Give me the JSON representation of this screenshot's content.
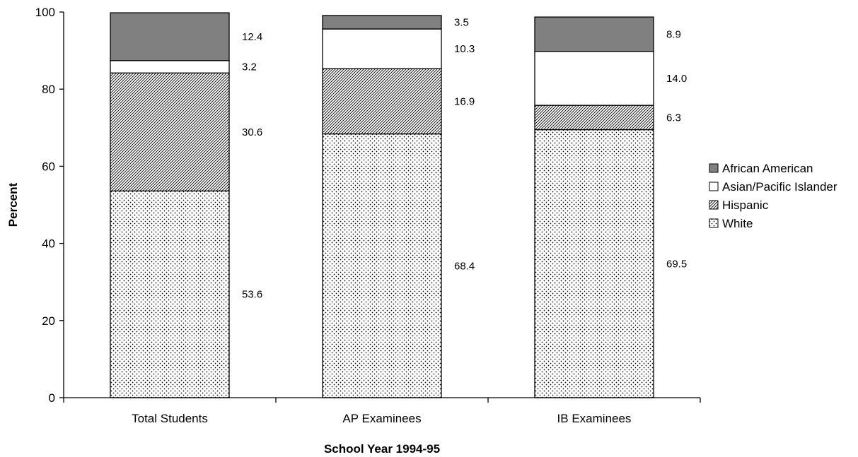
{
  "chart_data": {
    "type": "bar",
    "stacked": true,
    "categories": [
      "Total Students",
      "AP Examinees",
      "IB Examinees"
    ],
    "series": [
      {
        "name": "White",
        "values": [
          53.6,
          68.4,
          69.5
        ],
        "labels": [
          "53.6",
          "68.4",
          "69.5"
        ],
        "pattern": "dotted"
      },
      {
        "name": "Hispanic",
        "values": [
          30.6,
          16.9,
          6.3
        ],
        "labels": [
          "30.6",
          "16.9",
          "6.3"
        ],
        "pattern": "diagonal-hatch"
      },
      {
        "name": "Asian/Pacific Islander",
        "values": [
          3.2,
          10.3,
          14.0
        ],
        "labels": [
          "3.2",
          "10.3",
          "14.0"
        ],
        "color": "#ffffff"
      },
      {
        "name": "African American",
        "values": [
          12.4,
          3.5,
          8.9
        ],
        "labels": [
          "12.4",
          "3.5",
          "8.9"
        ],
        "color": "#808080"
      }
    ],
    "legend_order": [
      "African American",
      "Asian/Pacific Islander",
      "Hispanic",
      "White"
    ],
    "xlabel": "School Year 1994-95",
    "ylabel": "Percent",
    "ylim": [
      0,
      100
    ],
    "yticks": [
      "0",
      "20",
      "40",
      "60",
      "80",
      "100"
    ],
    "grid": false,
    "legend_position": "right"
  }
}
